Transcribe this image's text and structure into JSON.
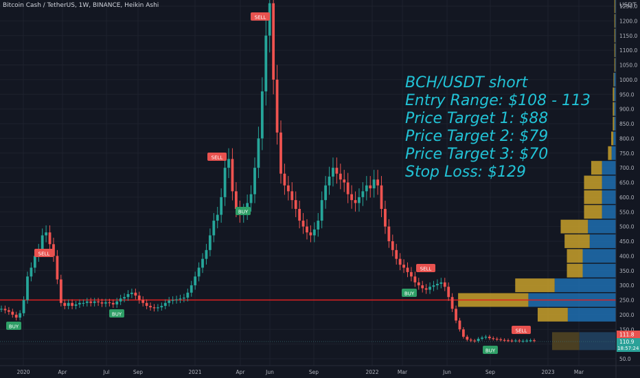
{
  "header": {
    "symbol_line": "Bitcoin Cash / TetherUS, 1W, BINANCE, Heikin Ashi",
    "currency": "USDT"
  },
  "annotation": {
    "lines": [
      "BCH/USDT short",
      "Entry Range: $108 - 113",
      "Price Target 1: $88",
      "Price Target 2: $79",
      "Price Target 3: $70",
      "Stop Loss: $129"
    ]
  },
  "colors": {
    "background": "#131722",
    "up_candle": "#26a69a",
    "down_candle": "#ef5350",
    "support_line": "#e02020",
    "annotation_text": "#22c3d6",
    "volume_up": "#1e6fb0",
    "volume_down": "#c8a02a"
  },
  "price_axis": {
    "ticks": [
      "1250.0",
      "1200.0",
      "1150.0",
      "1100.0",
      "1050.0",
      "1000.0",
      "950.0",
      "900.0",
      "850.0",
      "800.0",
      "750.0",
      "700.0",
      "650.0",
      "600.0",
      "550.0",
      "500.0",
      "450.0",
      "400.0",
      "350.0",
      "300.0",
      "250.0",
      "200.0",
      "150.0",
      "100.0",
      "50.0"
    ],
    "last_price": "111.8",
    "current_price": "110.9",
    "countdown": "18:57:24"
  },
  "time_axis": {
    "ticks": [
      "2020",
      "Apr",
      "Jul",
      "Sep",
      "2021",
      "Apr",
      "Jun",
      "Sep",
      "2022",
      "Mar",
      "Jun",
      "Sep",
      "2023",
      "Mar"
    ]
  },
  "signals": [
    {
      "label": "BUY",
      "type": "buy"
    },
    {
      "label": "SELL",
      "type": "sell"
    },
    {
      "label": "BUY",
      "type": "buy"
    },
    {
      "label": "SELL",
      "type": "sell"
    },
    {
      "label": "BUY",
      "type": "buy"
    },
    {
      "label": "SELL",
      "type": "sell"
    },
    {
      "label": "SELL",
      "type": "sell"
    },
    {
      "label": "BUY",
      "type": "buy"
    },
    {
      "label": "BUY",
      "type": "buy"
    },
    {
      "label": "SELL",
      "type": "sell"
    }
  ],
  "support_level": 250,
  "volume_profile": [
    {
      "price": 200,
      "up": 0.55,
      "down": 0.42
    },
    {
      "price": 250,
      "up": 1.0,
      "down": 0.98
    },
    {
      "price": 300,
      "up": 0.7,
      "down": 0.55
    },
    {
      "price": 350,
      "up": 0.38,
      "down": 0.22
    },
    {
      "price": 400,
      "up": 0.38,
      "down": 0.22
    },
    {
      "price": 450,
      "up": 0.3,
      "down": 0.35
    },
    {
      "price": 500,
      "up": 0.32,
      "down": 0.38
    },
    {
      "price": 550,
      "up": 0.16,
      "down": 0.25
    },
    {
      "price": 600,
      "up": 0.16,
      "down": 0.25
    },
    {
      "price": 650,
      "up": 0.16,
      "down": 0.25
    },
    {
      "price": 700,
      "up": 0.16,
      "down": 0.15
    },
    {
      "price": 750,
      "up": 0.05,
      "down": 0.05
    },
    {
      "price": 800,
      "up": 0.03,
      "down": 0.03
    },
    {
      "price": 850,
      "up": 0.02,
      "down": 0.02
    },
    {
      "price": 900,
      "up": 0.02,
      "down": 0.02
    },
    {
      "price": 950,
      "up": 0.02,
      "down": 0.02
    },
    {
      "price": 1000,
      "up": 0.02,
      "down": 0.01
    },
    {
      "price": 1050,
      "up": 0.01,
      "down": 0.01
    },
    {
      "price": 1100,
      "up": 0.01,
      "down": 0.01
    },
    {
      "price": 1150,
      "up": 0.01,
      "down": 0.01
    },
    {
      "price": 1200,
      "up": 0.01,
      "down": 0.01
    },
    {
      "price": 1250,
      "up": 0.01,
      "down": 0.01
    }
  ],
  "bottom_profile": {
    "up": 0.23,
    "down": 0.38
  },
  "candles_close": [
    220,
    215,
    210,
    200,
    190,
    205,
    250,
    330,
    360,
    400,
    420,
    470,
    480,
    440,
    400,
    320,
    240,
    230,
    240,
    230,
    235,
    240,
    240,
    245,
    240,
    245,
    242,
    238,
    242,
    240,
    235,
    245,
    255,
    260,
    270,
    275,
    265,
    250,
    240,
    230,
    225,
    222,
    225,
    230,
    240,
    248,
    250,
    252,
    255,
    258,
    275,
    300,
    330,
    360,
    390,
    420,
    470,
    520,
    540,
    600,
    700,
    730,
    620,
    560,
    540,
    550,
    580,
    610,
    700,
    800,
    960,
    1150,
    1260,
    1000,
    820,
    680,
    640,
    620,
    590,
    560,
    520,
    500,
    480,
    470,
    490,
    520,
    590,
    640,
    670,
    700,
    680,
    660,
    650,
    610,
    590,
    580,
    600,
    620,
    640,
    630,
    660,
    640,
    560,
    500,
    450,
    420,
    390,
    370,
    360,
    345,
    330,
    310,
    300,
    290,
    285,
    295,
    300,
    305,
    310,
    295,
    260,
    220,
    180,
    150,
    125,
    115,
    112,
    110,
    118,
    122,
    125,
    120,
    118,
    116,
    114,
    113,
    112,
    111,
    112,
    110,
    111,
    112,
    113,
    111
  ]
}
